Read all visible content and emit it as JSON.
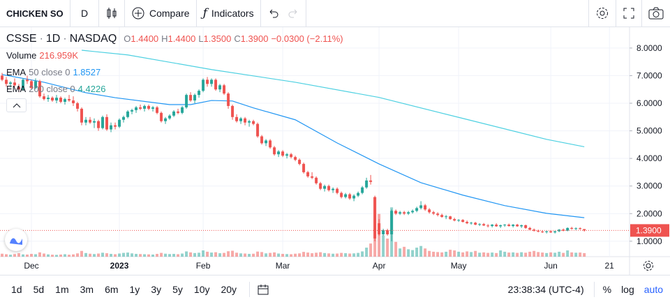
{
  "toolbar": {
    "symbol": "CHICKEN SO",
    "interval": "D",
    "compare": "Compare",
    "indicators": "Indicators"
  },
  "legend": {
    "symbol": "CSSE",
    "interval": "1D",
    "exchange": "NASDAQ",
    "o_label": "O",
    "o": "1.4400",
    "h_label": "H",
    "h": "1.4400",
    "l_label": "L",
    "l": "1.3500",
    "c_label": "C",
    "c": "1.3900",
    "change": "−0.0300 (−2.11%)",
    "volume_label": "Volume",
    "volume": "216.959K",
    "ema50_name": "EMA",
    "ema50_params": "50 close 0",
    "ema50_value": "1.8527",
    "ema200_name": "EMA",
    "ema200_params": "200 close 0",
    "ema200_value": "4.4226"
  },
  "chart_data": {
    "type": "candlestick",
    "up_color": "#26a69a",
    "down_color": "#ef5350",
    "xlim": [
      -0.5,
      149.8
    ],
    "ylim": [
      0.44,
      8.78
    ],
    "volume_lim": [
      0,
      14000000
    ],
    "grid": true,
    "xticks": [
      {
        "value": 7,
        "label": "Dec"
      },
      {
        "value": 28,
        "label": "2023"
      },
      {
        "value": 48,
        "label": "Feb"
      },
      {
        "value": 67,
        "label": "Mar"
      },
      {
        "value": 90,
        "label": "Apr"
      },
      {
        "value": 109,
        "label": "May"
      },
      {
        "value": 131,
        "label": "Jun"
      },
      {
        "value": 145,
        "label": "21"
      }
    ],
    "yticks": [
      {
        "value": 1,
        "label": "1.0000"
      },
      {
        "value": 2,
        "label": "2.0000"
      },
      {
        "value": 3,
        "label": "3.0000"
      },
      {
        "value": 4,
        "label": "4.0000"
      },
      {
        "value": 5,
        "label": "5.0000"
      },
      {
        "value": 6,
        "label": "6.0000"
      },
      {
        "value": 7,
        "label": "7.0000"
      },
      {
        "value": 8,
        "label": "8.0000"
      }
    ],
    "last_price_label": "1.3900",
    "ohlc": [
      [
        7.0,
        7.1,
        6.8,
        6.85
      ],
      [
        6.85,
        6.95,
        6.6,
        6.7
      ],
      [
        6.7,
        6.8,
        6.55,
        6.75
      ],
      [
        6.75,
        6.9,
        6.6,
        6.65
      ],
      [
        6.6,
        6.7,
        6.4,
        6.5
      ],
      [
        6.5,
        6.9,
        6.45,
        6.85
      ],
      [
        6.85,
        7.0,
        6.7,
        6.8
      ],
      [
        6.8,
        6.85,
        6.5,
        6.55
      ],
      [
        6.55,
        6.9,
        6.5,
        6.8
      ],
      [
        6.8,
        6.85,
        6.2,
        6.25
      ],
      [
        6.25,
        6.35,
        6.1,
        6.15
      ],
      [
        6.15,
        6.3,
        6.05,
        6.2
      ],
      [
        6.2,
        6.25,
        6.05,
        6.1
      ],
      [
        6.1,
        6.3,
        6.0,
        6.2
      ],
      [
        6.2,
        6.25,
        6.0,
        6.05
      ],
      [
        6.05,
        6.2,
        5.95,
        6.15
      ],
      [
        6.15,
        6.3,
        6.05,
        6.1
      ],
      [
        6.1,
        6.25,
        5.9,
        6.0
      ],
      [
        6.0,
        6.05,
        5.7,
        5.8
      ],
      [
        5.8,
        5.85,
        5.2,
        5.3
      ],
      [
        5.3,
        5.5,
        5.2,
        5.4
      ],
      [
        5.4,
        5.5,
        5.25,
        5.3
      ],
      [
        5.3,
        5.45,
        5.1,
        5.35
      ],
      [
        5.35,
        5.4,
        5.0,
        5.1
      ],
      [
        5.1,
        5.55,
        5.05,
        5.5
      ],
      [
        5.5,
        5.6,
        5.0,
        5.05
      ],
      [
        5.05,
        5.3,
        4.95,
        5.2
      ],
      [
        5.2,
        5.3,
        5.05,
        5.15
      ],
      [
        5.15,
        5.45,
        5.1,
        5.4
      ],
      [
        5.4,
        5.55,
        5.3,
        5.5
      ],
      [
        5.5,
        5.75,
        5.45,
        5.7
      ],
      [
        5.7,
        5.8,
        5.6,
        5.75
      ],
      [
        5.75,
        5.9,
        5.65,
        5.85
      ],
      [
        5.85,
        5.95,
        5.75,
        5.8
      ],
      [
        5.8,
        5.95,
        5.7,
        5.9
      ],
      [
        5.9,
        5.95,
        5.75,
        5.8
      ],
      [
        5.8,
        5.9,
        5.7,
        5.85
      ],
      [
        5.85,
        5.9,
        5.6,
        5.65
      ],
      [
        5.65,
        5.7,
        5.3,
        5.35
      ],
      [
        5.35,
        5.5,
        5.25,
        5.45
      ],
      [
        5.45,
        5.6,
        5.4,
        5.55
      ],
      [
        5.55,
        5.75,
        5.5,
        5.7
      ],
      [
        5.7,
        5.8,
        5.6,
        5.65
      ],
      [
        5.65,
        5.9,
        5.6,
        5.85
      ],
      [
        5.85,
        6.35,
        5.8,
        6.3
      ],
      [
        6.3,
        6.4,
        6.05,
        6.1
      ],
      [
        6.1,
        6.35,
        6.0,
        6.3
      ],
      [
        6.3,
        6.5,
        6.2,
        6.45
      ],
      [
        6.45,
        6.9,
        6.4,
        6.85
      ],
      [
        6.85,
        6.95,
        6.6,
        6.7
      ],
      [
        6.7,
        6.9,
        6.6,
        6.85
      ],
      [
        6.85,
        6.9,
        6.45,
        6.5
      ],
      [
        6.5,
        6.7,
        6.4,
        6.65
      ],
      [
        6.65,
        6.7,
        6.3,
        6.35
      ],
      [
        6.35,
        6.4,
        5.8,
        5.9
      ],
      [
        5.9,
        5.95,
        5.4,
        5.5
      ],
      [
        5.5,
        5.6,
        5.3,
        5.35
      ],
      [
        5.35,
        5.5,
        5.25,
        5.45
      ],
      [
        5.45,
        5.5,
        5.2,
        5.3
      ],
      [
        5.3,
        5.4,
        5.15,
        5.35
      ],
      [
        5.35,
        5.4,
        5.2,
        5.25
      ],
      [
        5.25,
        5.3,
        4.75,
        4.8
      ],
      [
        4.8,
        4.85,
        4.5,
        4.55
      ],
      [
        4.55,
        4.7,
        4.45,
        4.65
      ],
      [
        4.65,
        4.7,
        4.35,
        4.4
      ],
      [
        4.4,
        4.45,
        4.1,
        4.15
      ],
      [
        4.15,
        4.3,
        4.05,
        4.25
      ],
      [
        4.25,
        4.3,
        4.05,
        4.1
      ],
      [
        4.1,
        4.2,
        4.0,
        4.15
      ],
      [
        4.15,
        4.2,
        4.0,
        4.05
      ],
      [
        4.05,
        4.1,
        3.9,
        3.95
      ],
      [
        3.95,
        4.0,
        3.75,
        3.8
      ],
      [
        3.8,
        3.85,
        3.45,
        3.5
      ],
      [
        3.5,
        3.55,
        3.3,
        3.35
      ],
      [
        3.35,
        3.5,
        3.25,
        3.3
      ],
      [
        3.3,
        3.35,
        3.05,
        3.1
      ],
      [
        3.1,
        3.15,
        2.85,
        2.9
      ],
      [
        2.9,
        3.05,
        2.8,
        3.0
      ],
      [
        3.0,
        3.05,
        2.8,
        2.85
      ],
      [
        2.85,
        2.95,
        2.75,
        2.9
      ],
      [
        2.9,
        2.95,
        2.7,
        2.75
      ],
      [
        2.75,
        2.8,
        2.55,
        2.6
      ],
      [
        2.6,
        2.75,
        2.55,
        2.7
      ],
      [
        2.7,
        2.75,
        2.5,
        2.55
      ],
      [
        2.55,
        2.7,
        2.45,
        2.65
      ],
      [
        2.65,
        2.8,
        2.6,
        2.75
      ],
      [
        2.75,
        3.0,
        2.7,
        2.95
      ],
      [
        2.95,
        3.3,
        2.9,
        3.2
      ],
      [
        3.2,
        3.4,
        3.05,
        3.15
      ],
      [
        2.6,
        2.65,
        1.0,
        1.1
      ],
      [
        1.65,
        1.8,
        1.2,
        1.25
      ],
      [
        1.25,
        1.45,
        1.2,
        1.4
      ],
      [
        1.4,
        1.45,
        1.2,
        1.25
      ],
      [
        1.25,
        2.15,
        1.0,
        2.1
      ],
      [
        2.1,
        2.15,
        1.95,
        2.0
      ],
      [
        2.0,
        2.1,
        1.95,
        2.05
      ],
      [
        2.05,
        2.1,
        1.95,
        2.0
      ],
      [
        2.0,
        2.1,
        1.95,
        2.05
      ],
      [
        2.05,
        2.15,
        2.0,
        2.1
      ],
      [
        2.1,
        2.25,
        2.05,
        2.2
      ],
      [
        2.2,
        2.45,
        2.15,
        2.3
      ],
      [
        2.3,
        2.35,
        2.1,
        2.15
      ],
      [
        2.15,
        2.2,
        2.0,
        2.05
      ],
      [
        2.05,
        2.1,
        1.95,
        2.0
      ],
      [
        2.0,
        2.05,
        1.9,
        1.95
      ],
      [
        1.95,
        2.0,
        1.85,
        1.88
      ],
      [
        1.88,
        1.95,
        1.8,
        1.9
      ],
      [
        1.9,
        1.92,
        1.78,
        1.8
      ],
      [
        1.8,
        1.85,
        1.72,
        1.75
      ],
      [
        1.75,
        1.8,
        1.7,
        1.77
      ],
      [
        1.77,
        1.8,
        1.68,
        1.7
      ],
      [
        1.7,
        1.75,
        1.62,
        1.65
      ],
      [
        1.65,
        1.7,
        1.6,
        1.67
      ],
      [
        1.67,
        1.7,
        1.58,
        1.6
      ],
      [
        1.6,
        1.65,
        1.55,
        1.62
      ],
      [
        1.62,
        1.66,
        1.55,
        1.57
      ],
      [
        1.57,
        1.62,
        1.5,
        1.55
      ],
      [
        1.55,
        1.62,
        1.5,
        1.6
      ],
      [
        1.6,
        1.65,
        1.52,
        1.54
      ],
      [
        1.54,
        1.6,
        1.48,
        1.58
      ],
      [
        1.58,
        1.62,
        1.52,
        1.6
      ],
      [
        1.6,
        1.64,
        1.53,
        1.55
      ],
      [
        1.55,
        1.62,
        1.5,
        1.6
      ],
      [
        1.6,
        1.63,
        1.52,
        1.54
      ],
      [
        1.54,
        1.6,
        1.48,
        1.58
      ],
      [
        1.58,
        1.6,
        1.45,
        1.48
      ],
      [
        1.48,
        1.52,
        1.4,
        1.42
      ],
      [
        1.42,
        1.46,
        1.35,
        1.38
      ],
      [
        1.38,
        1.42,
        1.32,
        1.35
      ],
      [
        1.35,
        1.4,
        1.3,
        1.33
      ],
      [
        1.33,
        1.38,
        1.28,
        1.36
      ],
      [
        1.36,
        1.4,
        1.3,
        1.32
      ],
      [
        1.32,
        1.38,
        1.28,
        1.36
      ],
      [
        1.36,
        1.44,
        1.33,
        1.42
      ],
      [
        1.42,
        1.46,
        1.36,
        1.38
      ],
      [
        1.38,
        1.5,
        1.36,
        1.48
      ],
      [
        1.48,
        1.52,
        1.42,
        1.45
      ],
      [
        1.45,
        1.5,
        1.4,
        1.47
      ],
      [
        1.47,
        1.5,
        1.42,
        1.44
      ],
      [
        1.44,
        1.44,
        1.35,
        1.39
      ]
    ],
    "volume": [
      180000,
      150000,
      120000,
      160000,
      210000,
      140000,
      130000,
      170000,
      150000,
      260000,
      190000,
      140000,
      120000,
      110000,
      130000,
      150000,
      120000,
      140000,
      200000,
      350000,
      220000,
      180000,
      160000,
      190000,
      240000,
      210000,
      170000,
      150000,
      190000,
      230000,
      250000,
      200000,
      170000,
      160000,
      150000,
      140000,
      130000,
      170000,
      230000,
      180000,
      160000,
      170000,
      150000,
      190000,
      320000,
      260000,
      220000,
      240000,
      380000,
      300000,
      250000,
      270000,
      210000,
      230000,
      330000,
      360000,
      240000,
      200000,
      190000,
      170000,
      180000,
      310000,
      280000,
      200000,
      230000,
      260000,
      190000,
      170000,
      160000,
      150000,
      180000,
      200000,
      290000,
      250000,
      210000,
      240000,
      270000,
      220000,
      200000,
      180000,
      190000,
      230000,
      210000,
      190000,
      200000,
      230000,
      320000,
      550000,
      800000,
      3600000,
      2600000,
      1300000,
      1100000,
      3000000,
      900000,
      500000,
      600000,
      450000,
      400000,
      550000,
      650000,
      500000,
      350000,
      300000,
      280000,
      260000,
      300000,
      420000,
      380000,
      300000,
      260000,
      320000,
      280000,
      350000,
      240000,
      260000,
      230000,
      250000,
      220000,
      380000,
      300000,
      250000,
      260000,
      230000,
      270000,
      240000,
      300000,
      350000,
      280000,
      250000,
      220000,
      260000,
      240000,
      300000,
      230000,
      380000,
      260000,
      240000,
      250000,
      216959
    ],
    "series": [
      {
        "name": "EMA 50",
        "color": "#2196f3",
        "x": [
          0,
          10,
          20,
          27,
          40,
          45,
          50,
          55,
          60,
          70,
          80,
          90,
          100,
          110,
          120,
          130,
          139
        ],
        "values": [
          7.04,
          6.76,
          6.38,
          6.2,
          5.95,
          5.95,
          6.1,
          6.08,
          5.83,
          5.4,
          4.56,
          3.8,
          3.12,
          2.67,
          2.29,
          2.01,
          1.8527
        ]
      },
      {
        "name": "EMA 200",
        "color": "#4dd0e1",
        "x": [
          19,
          30,
          50,
          70,
          90,
          110,
          130,
          139
        ],
        "values": [
          7.92,
          7.75,
          7.22,
          6.76,
          6.21,
          5.45,
          4.69,
          4.4226
        ]
      }
    ]
  },
  "bottom": {
    "ranges": [
      "1d",
      "5d",
      "1m",
      "3m",
      "6m",
      "1y",
      "3y",
      "5y",
      "10y",
      "20y"
    ],
    "clock": "23:38:34 (UTC-4)",
    "percent": "%",
    "log": "log",
    "auto": "auto"
  }
}
